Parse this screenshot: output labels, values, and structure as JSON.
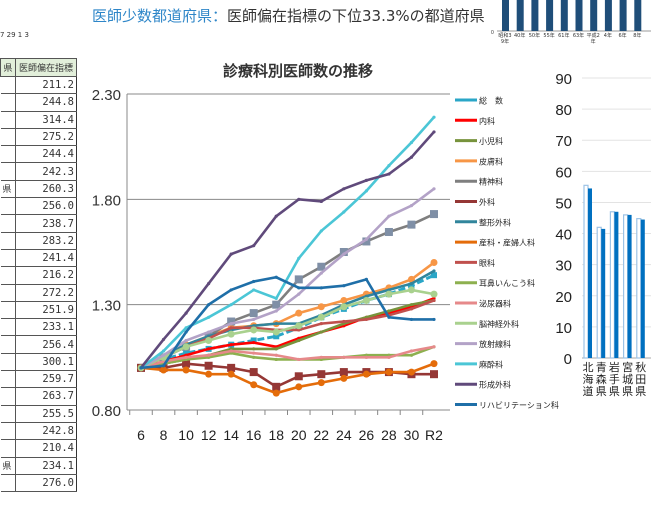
{
  "top_note": "7 29 1 3",
  "subtitle": {
    "key": "医師少数都道府県：",
    "value": "医師偏在指標の下位33.3%の都道府県"
  },
  "table": {
    "header_partial": "県",
    "header": "医師偏在指標",
    "rows": [
      {
        "pref": "",
        "value": "211.2"
      },
      {
        "pref": "",
        "value": "244.8"
      },
      {
        "pref": "",
        "value": "314.4"
      },
      {
        "pref": "",
        "value": "275.2"
      },
      {
        "pref": "",
        "value": "244.4"
      },
      {
        "pref": "",
        "value": "242.3"
      },
      {
        "pref": "県",
        "value": "260.3"
      },
      {
        "pref": "",
        "value": "256.0"
      },
      {
        "pref": "",
        "value": "238.7"
      },
      {
        "pref": "",
        "value": "283.2"
      },
      {
        "pref": "",
        "value": "241.4"
      },
      {
        "pref": "",
        "value": "216.2"
      },
      {
        "pref": "",
        "value": "272.2"
      },
      {
        "pref": "",
        "value": "251.9"
      },
      {
        "pref": "",
        "value": "233.1"
      },
      {
        "pref": "",
        "value": "256.4"
      },
      {
        "pref": "",
        "value": "300.1"
      },
      {
        "pref": "",
        "value": "259.7"
      },
      {
        "pref": "",
        "value": "263.7"
      },
      {
        "pref": "",
        "value": "255.5"
      },
      {
        "pref": "",
        "value": "242.8"
      },
      {
        "pref": "",
        "value": "210.4"
      },
      {
        "pref": "県",
        "value": "234.1"
      },
      {
        "pref": "",
        "value": "276.0"
      }
    ]
  },
  "chart_data": [
    {
      "type": "line",
      "title": "診療科別医師数の推移",
      "categories": [
        "6",
        "8",
        "10",
        "12",
        "14",
        "16",
        "18",
        "20",
        "22",
        "24",
        "26",
        "28",
        "30",
        "R2"
      ],
      "ylim": [
        0.8,
        2.3
      ],
      "yticks": [
        "2.30",
        "1.80",
        "1.30",
        "0.80"
      ],
      "grid": true,
      "legend": "right",
      "series": [
        {
          "name": "総　数",
          "color": "#2aa6c7",
          "values": [
            1.0,
            1.04,
            1.07,
            1.09,
            1.11,
            1.13,
            1.15,
            1.19,
            1.24,
            1.28,
            1.32,
            1.35,
            1.39,
            1.44
          ]
        },
        {
          "name": "内科",
          "color": "#ff0000",
          "values": [
            1.0,
            1.03,
            1.06,
            1.09,
            1.11,
            1.12,
            1.1,
            1.14,
            1.17,
            1.2,
            1.24,
            1.26,
            1.29,
            1.33
          ]
        },
        {
          "name": "小児科",
          "color": "#77933c",
          "values": [
            1.0,
            1.02,
            1.04,
            1.06,
            1.09,
            1.09,
            1.09,
            1.13,
            1.17,
            1.21,
            1.24,
            1.27,
            1.3,
            1.32
          ]
        },
        {
          "name": "皮膚科",
          "color": "#f79646",
          "values": [
            1.0,
            1.05,
            1.11,
            1.15,
            1.19,
            1.2,
            1.21,
            1.26,
            1.29,
            1.32,
            1.35,
            1.38,
            1.42,
            1.5
          ]
        },
        {
          "name": "精神科",
          "color": "#7f7f7f",
          "values": [
            1.0,
            1.05,
            1.1,
            1.15,
            1.22,
            1.26,
            1.3,
            1.42,
            1.48,
            1.55,
            1.6,
            1.645,
            1.68,
            1.73
          ]
        },
        {
          "name": "外科",
          "color": "#953735",
          "values": [
            1.0,
            1.0,
            1.02,
            1.01,
            1.0,
            0.98,
            0.91,
            0.96,
            0.97,
            0.98,
            0.98,
            0.98,
            0.97,
            0.97
          ]
        },
        {
          "name": "整形外科",
          "color": "#31859c",
          "values": [
            1.0,
            1.06,
            1.11,
            1.15,
            1.18,
            1.2,
            1.21,
            1.21,
            1.25,
            1.3,
            1.34,
            1.37,
            1.4,
            1.46
          ]
        },
        {
          "name": "産科・産婦人科",
          "color": "#e46c0a",
          "values": [
            1.0,
            0.99,
            0.99,
            0.97,
            0.97,
            0.92,
            0.88,
            0.91,
            0.93,
            0.95,
            0.97,
            0.98,
            0.98,
            1.02
          ]
        },
        {
          "name": "眼科",
          "color": "#c0504d",
          "values": [
            1.0,
            1.05,
            1.1,
            1.14,
            1.19,
            1.19,
            1.18,
            1.18,
            1.21,
            1.22,
            1.23,
            1.25,
            1.28,
            1.32
          ]
        },
        {
          "name": "耳鼻いんこう科",
          "color": "#8db04f",
          "values": [
            1.0,
            1.02,
            1.04,
            1.05,
            1.07,
            1.05,
            1.04,
            1.04,
            1.04,
            1.05,
            1.06,
            1.06,
            1.06,
            1.1
          ]
        },
        {
          "name": "泌尿器科",
          "color": "#e6898a",
          "values": [
            1.0,
            1.03,
            1.05,
            1.06,
            1.08,
            1.07,
            1.06,
            1.04,
            1.05,
            1.05,
            1.05,
            1.05,
            1.08,
            1.1
          ]
        },
        {
          "name": "脳神経外科",
          "color": "#a9d18e",
          "values": [
            1.0,
            1.05,
            1.1,
            1.13,
            1.16,
            1.18,
            1.17,
            1.2,
            1.24,
            1.29,
            1.32,
            1.35,
            1.37,
            1.35
          ]
        },
        {
          "name": "放射線科",
          "color": "#b3a2c7",
          "values": [
            1.0,
            1.06,
            1.13,
            1.17,
            1.21,
            1.23,
            1.27,
            1.35,
            1.45,
            1.54,
            1.61,
            1.72,
            1.77,
            1.85
          ]
        },
        {
          "name": "麻酔科",
          "color": "#4bc6d6",
          "values": [
            1.0,
            1.08,
            1.19,
            1.24,
            1.3,
            1.37,
            1.33,
            1.52,
            1.65,
            1.74,
            1.84,
            1.96,
            2.07,
            2.19
          ]
        },
        {
          "name": "形成外科",
          "color": "#604a7b",
          "values": [
            1.0,
            1.135,
            1.26,
            1.4,
            1.54,
            1.58,
            1.72,
            1.8,
            1.79,
            1.85,
            1.89,
            1.92,
            2.0,
            2.12
          ]
        },
        {
          "name": "リハビリテーション科",
          "color": "#1f6fa8",
          "values": [
            1.0,
            1.01,
            1.17,
            1.3,
            1.37,
            1.41,
            1.43,
            1.38,
            1.38,
            1.39,
            1.42,
            1.24,
            1.23,
            1.23
          ]
        }
      ]
    },
    {
      "type": "bar",
      "categories": [
        "北海道",
        "青森県",
        "岩手県",
        "宮城県",
        "秋田県"
      ],
      "ylim": [
        0,
        90
      ],
      "yticks": [
        "90",
        "80",
        "70",
        "60",
        "50",
        "40",
        "30",
        "20",
        "10",
        "0"
      ],
      "grid": true,
      "series": [
        {
          "color": "#9dc3e6",
          "values": [
            55.5,
            42,
            47,
            46,
            44.8
          ]
        },
        {
          "color": "#0070c0",
          "values": [
            54.5,
            41.5,
            47,
            46,
            44.5
          ]
        }
      ]
    },
    {
      "type": "bar",
      "categories": [
        "昭和39年",
        "40年",
        "50年",
        "55年",
        "61年",
        "63年",
        "平成2年",
        "4年",
        "6年",
        "8年"
      ],
      "yticks": [
        "0"
      ],
      "series": [
        {
          "color": "#1f4e79"
        }
      ]
    }
  ]
}
